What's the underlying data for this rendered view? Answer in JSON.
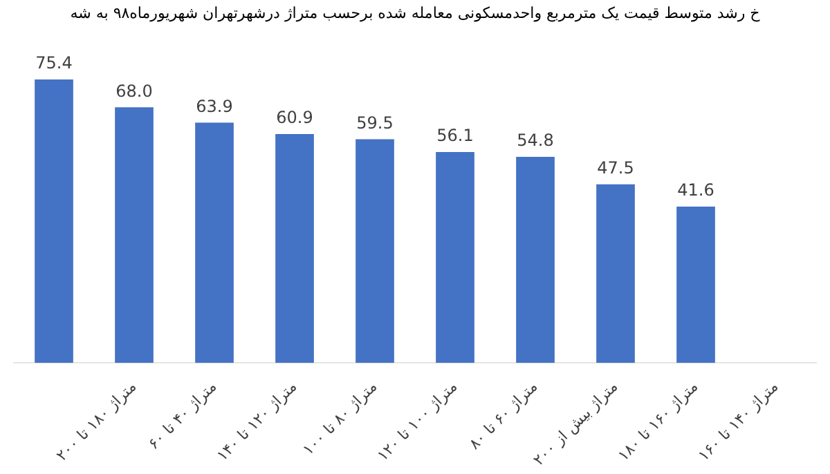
{
  "chart_data": {
    "type": "bar",
    "title": "خ رشد متوسط قیمت یک مترمربع واحدمسکونی معامله شده برحسب متراژ درشهرتهران  شهریورماه۹۸ به شه",
    "categories": [
      null,
      "متراژ ۱۸۰ تا ۲۰۰",
      "متراژ ۴۰ تا ۶۰",
      "متراژ ۱۲۰ تا ۱۴۰",
      "متراژ ۸۰ تا ۱۰۰",
      "متراژ ۱۰۰ تا ۱۲۰",
      "متراژ ۶۰ تا ۸۰",
      "متراژ بیش از ۲۰۰",
      "متراژ ۱۶۰ تا ۱۸۰",
      "متراژ ۱۴۰ تا ۱۶۰"
    ],
    "values": [
      75.4,
      68.0,
      63.9,
      60.9,
      59.5,
      56.1,
      54.8,
      47.5,
      41.6,
      null
    ],
    "value_labels": [
      "75.4",
      "68.0",
      "63.9",
      "60.9",
      "59.5",
      "56.1",
      "54.8",
      "47.5",
      "41.6",
      null
    ],
    "color": "#4472c4",
    "legend": false,
    "tick_labels": "x"
  }
}
